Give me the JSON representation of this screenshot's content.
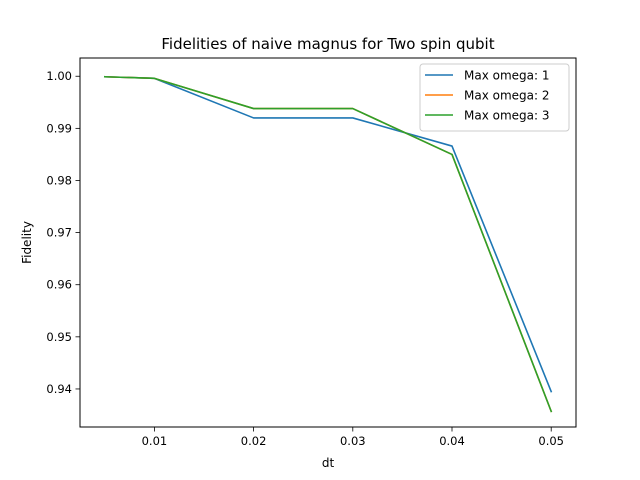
{
  "chart_data": {
    "type": "line",
    "title": "Fidelities of naive magnus for Two spin qubit",
    "xlabel": "dt",
    "ylabel": "Fidelity",
    "x": [
      0.005,
      0.01,
      0.02,
      0.03,
      0.04,
      0.05
    ],
    "xlim": [
      0.0025,
      0.0525
    ],
    "ylim": [
      0.9327,
      1.0035
    ],
    "xticks": [
      0.01,
      0.02,
      0.03,
      0.04,
      0.05
    ],
    "xtick_labels": [
      "0.01",
      "0.02",
      "0.03",
      "0.04",
      "0.05"
    ],
    "yticks": [
      0.94,
      0.95,
      0.96,
      0.97,
      0.98,
      0.99,
      1.0
    ],
    "ytick_labels": [
      "0.94",
      "0.95",
      "0.96",
      "0.97",
      "0.98",
      "0.99",
      "1.00"
    ],
    "grid": false,
    "legend_position": "top-right",
    "series": [
      {
        "name": "Max omega: 1",
        "color": "#1f77b4",
        "values": [
          0.9999,
          0.9996,
          0.992,
          0.992,
          0.9866,
          0.9395
        ]
      },
      {
        "name": "Max omega: 2",
        "color": "#ff7f0e",
        "values": [
          0.9999,
          0.9996,
          0.9938,
          0.9938,
          0.985,
          0.9357
        ]
      },
      {
        "name": "Max omega: 3",
        "color": "#2ca02c",
        "values": [
          0.9999,
          0.9996,
          0.9938,
          0.9938,
          0.985,
          0.9357
        ]
      }
    ]
  }
}
